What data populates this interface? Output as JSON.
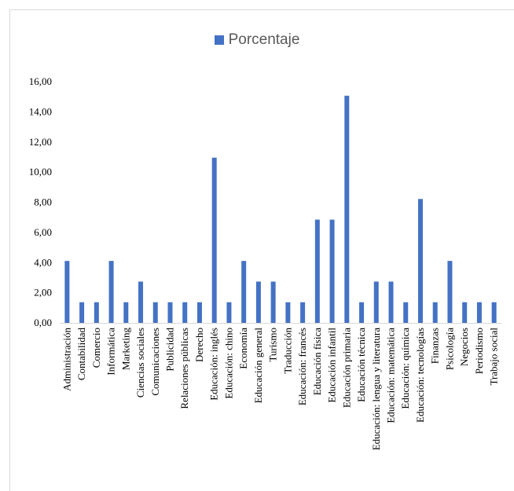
{
  "chart_data": {
    "type": "bar",
    "legend": "top",
    "grid": false,
    "series": [
      {
        "name": "Porcentaje",
        "color": "#4472c4",
        "values": [
          4.11,
          1.37,
          1.37,
          4.11,
          1.37,
          2.74,
          1.37,
          1.37,
          1.37,
          1.37,
          10.96,
          1.37,
          4.11,
          2.74,
          2.74,
          1.37,
          1.37,
          6.85,
          6.85,
          15.07,
          1.37,
          2.74,
          2.74,
          1.37,
          8.22,
          1.37,
          4.11,
          1.37,
          1.37,
          1.37
        ]
      }
    ],
    "categories": [
      "Administración",
      "Contabilidad",
      "Comercio",
      "Informática",
      "Marketing",
      "Ciencias sociales",
      "Comunicaciones",
      "Publicidad",
      "Relaciones públicas",
      "Derecho",
      "Educación: inglés",
      "Educación: chino",
      "Economía",
      "Educación general",
      "Turismo",
      "Traducción",
      "Educación: francés",
      "Educación física",
      "Educación infantil",
      "Educación primaria",
      "Educación técnica",
      "Educación: lengua y literatura",
      "Educación: matemática",
      "Educación: química",
      "Educación: tecnologías",
      "Finanzas",
      "Psicología",
      "Negocios",
      "Periodismo",
      "Trabajo social"
    ],
    "y_ticks": [
      "0,00",
      "2,00",
      "4,00",
      "6,00",
      "8,00",
      "10,00",
      "12,00",
      "14,00",
      "16,00"
    ],
    "ylim": [
      0,
      16
    ]
  }
}
